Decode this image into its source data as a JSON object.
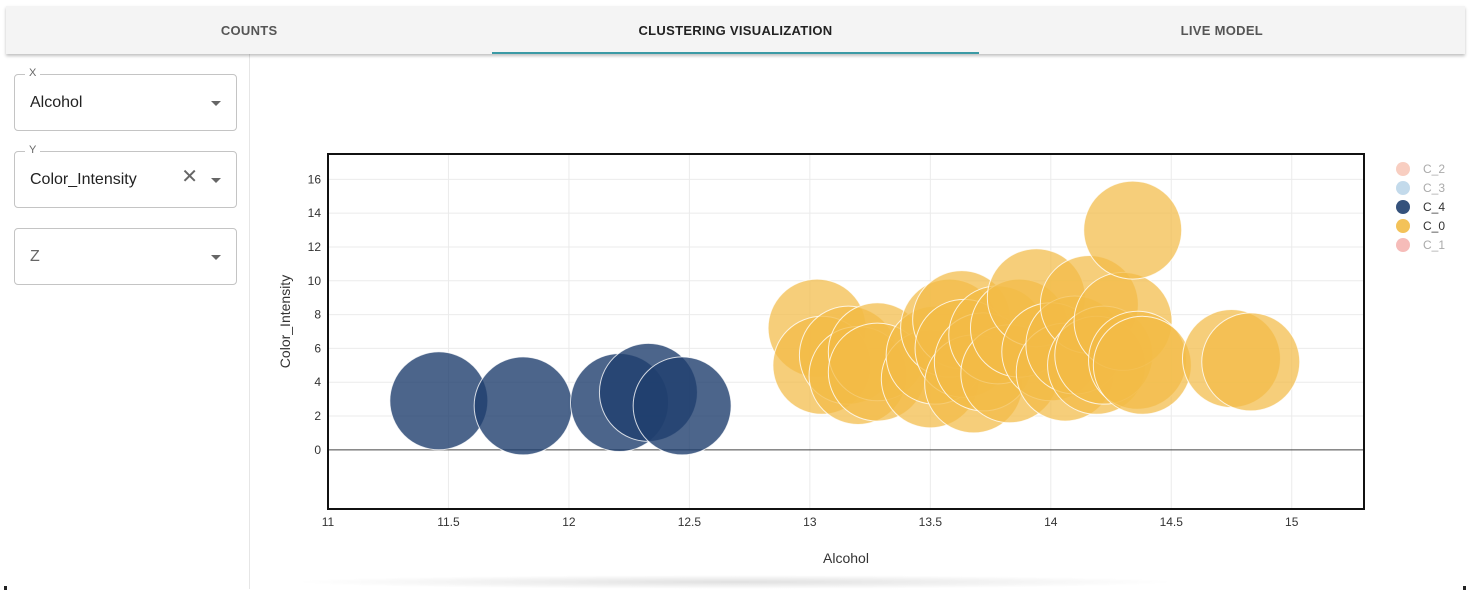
{
  "tabs": [
    {
      "label": "COUNTS",
      "active": false
    },
    {
      "label": "CLUSTERING VISUALIZATION",
      "active": true
    },
    {
      "label": "LIVE MODEL",
      "active": false
    }
  ],
  "controls": {
    "x": {
      "label": "X",
      "value": "Alcohol"
    },
    "y": {
      "label": "Y",
      "value": "Color_Intensity"
    },
    "z": {
      "placeholder": "Z"
    }
  },
  "colors": {
    "accent": "#3b9aa5",
    "C_4": "#1f3f6e",
    "C_0": "#f2bb47",
    "C_2": "#f7c6b6",
    "C_3": "#b8d4e8",
    "C_1": "#f5b0ad"
  },
  "chart_data": {
    "type": "scatter",
    "xlabel": "Alcohol",
    "ylabel": "Color_Intensity",
    "xlim": [
      11,
      15.3
    ],
    "ylim": [
      -3.5,
      17.5
    ],
    "xticks": [
      11,
      11.5,
      12,
      12.5,
      13,
      13.5,
      14,
      14.5,
      15
    ],
    "yticks": [
      0,
      2,
      4,
      6,
      8,
      10,
      12,
      14,
      16
    ],
    "grid": true,
    "legend_position": "right",
    "legend": [
      {
        "name": "C_2",
        "visible": false
      },
      {
        "name": "C_3",
        "visible": false
      },
      {
        "name": "C_4",
        "visible": true
      },
      {
        "name": "C_0",
        "visible": true
      },
      {
        "name": "C_1",
        "visible": false
      }
    ],
    "series": [
      {
        "name": "C_4",
        "points": [
          {
            "x": 11.46,
            "y": 2.9
          },
          {
            "x": 11.81,
            "y": 2.6
          },
          {
            "x": 12.21,
            "y": 2.8
          },
          {
            "x": 12.33,
            "y": 3.4
          },
          {
            "x": 12.47,
            "y": 2.6
          }
        ]
      },
      {
        "name": "C_0",
        "points": [
          {
            "x": 13.03,
            "y": 7.2
          },
          {
            "x": 13.05,
            "y": 5.0
          },
          {
            "x": 13.16,
            "y": 5.6
          },
          {
            "x": 13.2,
            "y": 4.4
          },
          {
            "x": 13.28,
            "y": 5.8
          },
          {
            "x": 13.28,
            "y": 4.6
          },
          {
            "x": 13.5,
            "y": 4.2
          },
          {
            "x": 13.52,
            "y": 5.6
          },
          {
            "x": 13.58,
            "y": 7.2
          },
          {
            "x": 13.63,
            "y": 7.7
          },
          {
            "x": 13.64,
            "y": 6.0
          },
          {
            "x": 13.68,
            "y": 3.9
          },
          {
            "x": 13.72,
            "y": 5.2
          },
          {
            "x": 13.78,
            "y": 6.8
          },
          {
            "x": 13.83,
            "y": 4.5
          },
          {
            "x": 13.87,
            "y": 7.2
          },
          {
            "x": 13.94,
            "y": 9.0
          },
          {
            "x": 14.0,
            "y": 5.8
          },
          {
            "x": 14.06,
            "y": 4.6
          },
          {
            "x": 14.1,
            "y": 6.2
          },
          {
            "x": 14.16,
            "y": 8.6
          },
          {
            "x": 14.19,
            "y": 5.0
          },
          {
            "x": 14.22,
            "y": 5.6
          },
          {
            "x": 14.3,
            "y": 7.6
          },
          {
            "x": 14.34,
            "y": 13.0
          },
          {
            "x": 14.36,
            "y": 5.3
          },
          {
            "x": 14.38,
            "y": 5.0
          },
          {
            "x": 14.75,
            "y": 5.4
          },
          {
            "x": 14.83,
            "y": 5.2
          }
        ]
      }
    ]
  }
}
